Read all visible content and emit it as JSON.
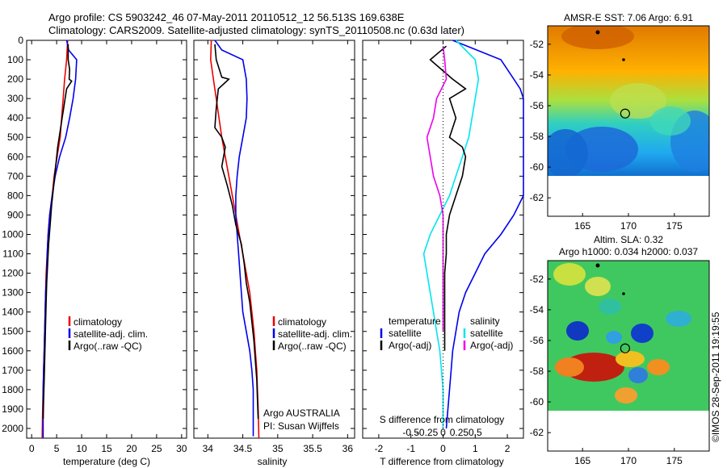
{
  "title": {
    "line1": "Argo profile: CS 5903242_46 07-May-2011 20110512_12 56.513S 169.638E",
    "line2": "Climatology: CARS2009. Satellite-adjusted climatology: synTS_20110508.nc (0.63d later)"
  },
  "credit": "©IMOS 28-Sep-2011 19:19:55",
  "colors": {
    "climatology": "#ee0000",
    "satellite": "#0000ee",
    "argo": "#000000",
    "salinity_satellite": "#00e5f0",
    "salinity_argo": "#ee00ee"
  },
  "chart_data": [
    {
      "id": "temperature",
      "type": "line",
      "xlabel": "temperature (deg C)",
      "ylabel": "",
      "xlim": [
        -1,
        31
      ],
      "ylim": [
        2050,
        0
      ],
      "xticks": [
        0,
        5,
        10,
        15,
        20,
        25,
        30
      ],
      "yticks": [
        0,
        100,
        200,
        300,
        400,
        500,
        600,
        700,
        800,
        900,
        1000,
        1100,
        1200,
        1300,
        1400,
        1500,
        1600,
        1700,
        1800,
        1900,
        2000
      ],
      "legend": [
        "climatology",
        "satellite-adj. clim.",
        "Argo(..raw -QC)"
      ],
      "legend_position": "lower-center",
      "series": [
        {
          "name": "climatology",
          "color": "#ee0000",
          "x": [
            7.2,
            7.0,
            6.6,
            6.3,
            6.0,
            5.7,
            5.1,
            4.5,
            4.1,
            3.6,
            3.3,
            3.1,
            2.9,
            2.8,
            2.7,
            2.6,
            2.5,
            2.4,
            2.3,
            2.2,
            2.1
          ],
          "y": [
            0,
            100,
            200,
            300,
            400,
            500,
            600,
            700,
            800,
            900,
            1000,
            1100,
            1200,
            1300,
            1400,
            1500,
            1600,
            1700,
            1800,
            1900,
            2050
          ]
        },
        {
          "name": "satellite-adj. clim.",
          "color": "#0000ee",
          "x": [
            7.0,
            7.4,
            9.0,
            8.8,
            8.3,
            7.6,
            6.8,
            5.6,
            4.7,
            4.1,
            3.6,
            3.3,
            3.1,
            3.0,
            2.8,
            2.7,
            2.6,
            2.5,
            2.4,
            2.3,
            2.3
          ],
          "y": [
            0,
            50,
            100,
            200,
            300,
            400,
            500,
            600,
            700,
            800,
            900,
            1000,
            1100,
            1200,
            1300,
            1400,
            1500,
            1600,
            1700,
            1800,
            2050
          ]
        },
        {
          "name": "Argo(..raw -QC)",
          "color": "#000000",
          "x": [
            7.3,
            7.3,
            7.6,
            7.5,
            8.0,
            7.0,
            6.7,
            6.4,
            6.1,
            5.8,
            5.2,
            4.8,
            4.4,
            4.0,
            3.7,
            3.4,
            3.2,
            3.0,
            2.9,
            2.8,
            2.7,
            2.6,
            2.5,
            2.4,
            2.3
          ],
          "y": [
            20,
            100,
            150,
            200,
            210,
            250,
            300,
            350,
            400,
            450,
            550,
            650,
            750,
            850,
            950,
            1050,
            1150,
            1250,
            1350,
            1450,
            1550,
            1650,
            1750,
            1850,
            1950
          ]
        }
      ]
    },
    {
      "id": "salinity",
      "type": "line",
      "xlabel": "salinity",
      "ylabel": "",
      "xlim": [
        33.8,
        36.1
      ],
      "ylim": [
        2050,
        0
      ],
      "xticks": [
        34,
        34.5,
        35,
        35.5,
        36
      ],
      "legend": [
        "climatology",
        "satellite-adj. clim.",
        "Argo(..raw -QC)"
      ],
      "legend_position": "lower-right",
      "annotation": [
        "Argo AUSTRALIA",
        "PI: Susan Wijffels"
      ],
      "series": [
        {
          "name": "climatology",
          "color": "#ee0000",
          "x": [
            34.05,
            34.04,
            34.08,
            34.12,
            34.16,
            34.2,
            34.25,
            34.3,
            34.35,
            34.4,
            34.45,
            34.5,
            34.55,
            34.6,
            34.63,
            34.66,
            34.68,
            34.7,
            34.71,
            34.72,
            34.73
          ],
          "y": [
            0,
            100,
            200,
            300,
            400,
            500,
            600,
            700,
            800,
            900,
            1000,
            1100,
            1200,
            1300,
            1400,
            1500,
            1600,
            1700,
            1800,
            1900,
            2050
          ]
        },
        {
          "name": "satellite-adj. clim.",
          "color": "#0000ee",
          "x": [
            34.1,
            34.2,
            34.5,
            34.55,
            34.56,
            34.55,
            34.5,
            34.45,
            34.42,
            34.4,
            34.4,
            34.42,
            34.44,
            34.46,
            34.48,
            34.5,
            34.55,
            34.6,
            34.63,
            34.65,
            34.65
          ],
          "y": [
            0,
            50,
            100,
            200,
            300,
            400,
            500,
            600,
            700,
            800,
            900,
            1000,
            1100,
            1200,
            1300,
            1400,
            1500,
            1600,
            1700,
            1800,
            2040
          ]
        },
        {
          "name": "Argo(..raw -QC)",
          "color": "#000000",
          "x": [
            34.1,
            34.12,
            34.2,
            34.3,
            34.15,
            34.12,
            34.1,
            34.2,
            34.25,
            34.2,
            34.28,
            34.35,
            34.4,
            34.48,
            34.52,
            34.55,
            34.6,
            34.63,
            34.66,
            34.68,
            34.7,
            34.71,
            34.72
          ],
          "y": [
            20,
            100,
            190,
            200,
            250,
            350,
            450,
            500,
            550,
            650,
            750,
            850,
            950,
            1050,
            1150,
            1250,
            1350,
            1450,
            1550,
            1650,
            1750,
            1850,
            1950
          ]
        }
      ]
    },
    {
      "id": "difference",
      "type": "line",
      "xlabel": "T difference from climatology",
      "xlabel2": "S difference from climatology",
      "ylabel": "",
      "xlim": [
        -2.5,
        2.5
      ],
      "ylim": [
        2050,
        0
      ],
      "xticks": [
        -2,
        -1,
        0,
        1,
        2
      ],
      "xticks2": [
        "-0.5",
        "-0.25",
        "0",
        "0.25",
        "0.5"
      ],
      "legend_temperature": {
        "header": "temperature",
        "items": [
          "satellite",
          "Argo(-adj)"
        ]
      },
      "legend_salinity": {
        "header": "salinity",
        "items": [
          "satellite",
          "Argo(-adj)"
        ]
      },
      "legend_position": "lower-center",
      "series": [
        {
          "name": "temperature satellite",
          "color": "#0000ee",
          "x": [
            0.3,
            1.8,
            2.2,
            2.4,
            2.5,
            2.5,
            2.5,
            2.5,
            2.2,
            1.8,
            1.3,
            1.0,
            0.7,
            0.5,
            0.4,
            0.3,
            0.25,
            0.2,
            0.15,
            0.1
          ],
          "y": [
            0,
            100,
            200,
            250,
            300,
            400,
            600,
            800,
            900,
            1000,
            1100,
            1200,
            1300,
            1400,
            1500,
            1600,
            1700,
            1800,
            1900,
            2000
          ]
        },
        {
          "name": "salinity satellite",
          "color": "#00e5f0",
          "x": [
            0.4,
            1.0,
            1.1,
            1.0,
            0.9,
            0.8,
            0.6,
            0.4,
            0.2,
            -0.1,
            -0.4,
            -0.6,
            -0.5,
            -0.4,
            -0.3,
            -0.2,
            -0.1,
            -0.05,
            0.0,
            0.0
          ],
          "y": [
            0,
            100,
            200,
            300,
            400,
            500,
            600,
            700,
            800,
            900,
            1000,
            1100,
            1200,
            1300,
            1400,
            1500,
            1600,
            1700,
            1800,
            2000
          ]
        },
        {
          "name": "temperature Argo(-adj)",
          "color": "#000000",
          "x": [
            0.1,
            -0.4,
            0.3,
            0.7,
            0.2,
            0.4,
            0.2,
            0.6,
            0.7,
            0.6,
            0.4,
            0.2,
            0.1,
            0.1,
            0.05,
            0.05,
            0.05,
            0.05,
            0.05
          ],
          "y": [
            30,
            100,
            200,
            250,
            300,
            400,
            500,
            550,
            600,
            700,
            800,
            900,
            1000,
            1100,
            1200,
            1300,
            1400,
            1500,
            1600
          ]
        },
        {
          "name": "salinity Argo(-adj)",
          "color": "#ee00ee",
          "x": [
            0.0,
            0.05,
            0.1,
            -0.2,
            -0.3,
            -0.5,
            -0.4,
            -0.3,
            -0.1,
            0.0,
            0.0,
            0.0,
            0.0,
            0.0,
            0.0
          ],
          "y": [
            30,
            100,
            200,
            300,
            400,
            500,
            600,
            700,
            800,
            900,
            1000,
            1100,
            1200,
            1300,
            1500
          ]
        }
      ]
    },
    {
      "id": "sst-map",
      "type": "heatmap",
      "title": "AMSR-E SST: 7.06 Argo: 6.91",
      "xticks": [
        165,
        170,
        175
      ],
      "yticks": [
        -52,
        -54,
        -56,
        -58,
        -60,
        -62
      ],
      "xlim": [
        161.2,
        178.8
      ],
      "ylim": [
        -63.2,
        -50.8
      ],
      "argo_position": [
        169.638,
        -56.513
      ],
      "no_data_below": -60
    },
    {
      "id": "sla-map",
      "type": "heatmap",
      "title": "Altim. SLA: 0.32",
      "subtitle": "Argo h1000: 0.034 h2000: 0.037",
      "xticks": [
        165,
        170,
        175
      ],
      "yticks": [
        -52,
        -54,
        -56,
        -58,
        -60,
        -62
      ],
      "xlim": [
        161.2,
        178.8
      ],
      "ylim": [
        -63.2,
        -50.8
      ],
      "argo_position": [
        169.638,
        -56.513
      ],
      "no_data_below": -60
    }
  ]
}
